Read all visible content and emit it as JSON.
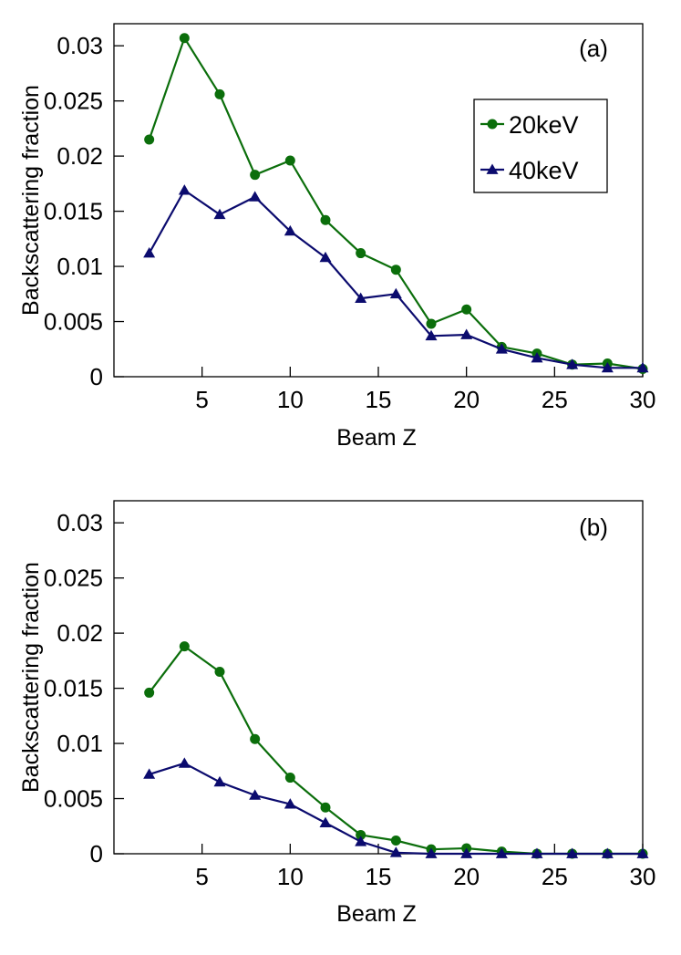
{
  "chart_data": [
    {
      "type": "line",
      "panel_label": "(a)",
      "xlabel": "Beam Z",
      "ylabel": "Backscattering fraction",
      "xlim": [
        0,
        30
      ],
      "ylim": [
        0,
        0.032
      ],
      "xticks": [
        5,
        10,
        15,
        20,
        25,
        30
      ],
      "xtick_labels": [
        "5",
        "10",
        "15",
        "20",
        "25",
        "30"
      ],
      "yticks": [
        0,
        0.005,
        0.01,
        0.015,
        0.02,
        0.025,
        0.03
      ],
      "ytick_labels": [
        "0",
        "0.005",
        "0.01",
        "0.015",
        "0.02",
        "0.025",
        "0.03"
      ],
      "x": [
        2,
        4,
        6,
        8,
        10,
        12,
        14,
        16,
        18,
        20,
        22,
        24,
        26,
        28,
        30
      ],
      "legend": "top-right",
      "series": [
        {
          "name": "20keV",
          "color": "#0b6e0b",
          "marker": "circle",
          "values": [
            0.0215,
            0.0307,
            0.0256,
            0.0183,
            0.0196,
            0.0142,
            0.0112,
            0.0097,
            0.0048,
            0.0061,
            0.0027,
            0.0021,
            0.0011,
            0.0012,
            0.0007
          ]
        },
        {
          "name": "40keV",
          "color": "#0b0b6e",
          "marker": "triangle",
          "values": [
            0.0112,
            0.0169,
            0.0147,
            0.0163,
            0.0132,
            0.0108,
            0.0071,
            0.0075,
            0.0037,
            0.0038,
            0.0025,
            0.0017,
            0.0011,
            0.0008,
            0.0008
          ]
        }
      ]
    },
    {
      "type": "line",
      "panel_label": "(b)",
      "xlabel": "Beam Z",
      "ylabel": "Backscattering fraction",
      "xlim": [
        0,
        30
      ],
      "ylim": [
        0,
        0.032
      ],
      "xticks": [
        5,
        10,
        15,
        20,
        25,
        30
      ],
      "xtick_labels": [
        "5",
        "10",
        "15",
        "20",
        "25",
        "30"
      ],
      "yticks": [
        0,
        0.005,
        0.01,
        0.015,
        0.02,
        0.025,
        0.03
      ],
      "ytick_labels": [
        "0",
        "0.005",
        "0.01",
        "0.015",
        "0.02",
        "0.025",
        "0.03"
      ],
      "x": [
        2,
        4,
        6,
        8,
        10,
        12,
        14,
        16,
        18,
        20,
        22,
        24,
        26,
        28,
        30
      ],
      "series": [
        {
          "name": "20keV",
          "color": "#0b6e0b",
          "marker": "circle",
          "values": [
            0.0146,
            0.0188,
            0.0165,
            0.0104,
            0.0069,
            0.0042,
            0.0017,
            0.0012,
            0.0004,
            0.0005,
            0.0002,
            0.0,
            0.0,
            0.0,
            0.0
          ]
        },
        {
          "name": "40keV",
          "color": "#0b0b6e",
          "marker": "triangle",
          "values": [
            0.0072,
            0.0082,
            0.0065,
            0.0053,
            0.0045,
            0.0028,
            0.0011,
            0.0001,
            0.0,
            0.0,
            0.0,
            0.0,
            0.0,
            0.0,
            0.0
          ]
        }
      ]
    }
  ]
}
